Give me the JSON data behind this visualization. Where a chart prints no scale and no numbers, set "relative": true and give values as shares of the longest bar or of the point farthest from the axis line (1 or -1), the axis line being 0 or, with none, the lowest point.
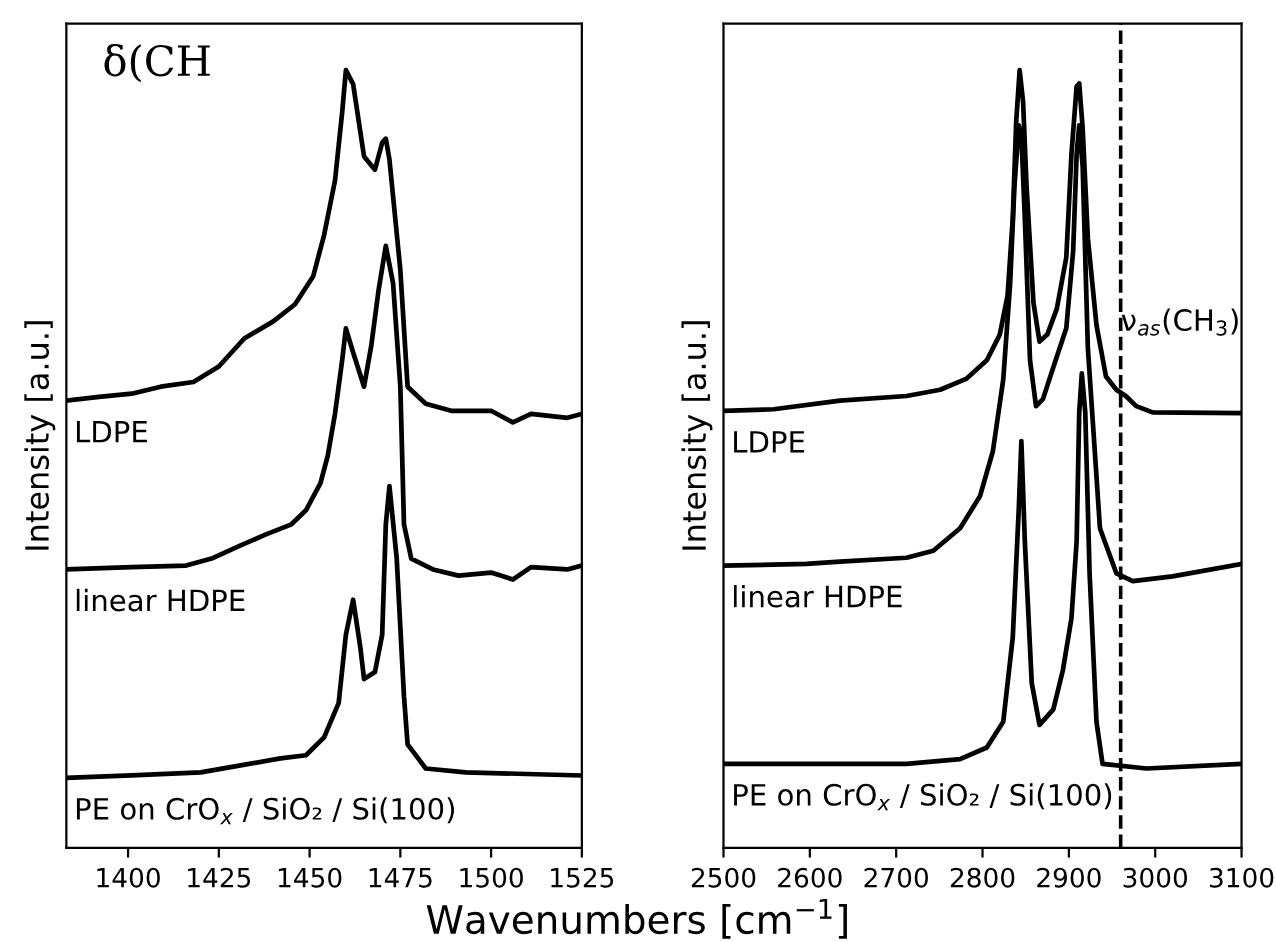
{
  "chart_data": [
    {
      "type": "line",
      "relative": true,
      "ylabel": "Intensity [a.u.]",
      "xlabel": "Wavenumbers [cm$^{−1}$]",
      "annotations": [
        "δ(CH"
      ],
      "xlim": [
        1383,
        1525
      ],
      "xticks": [
        1400,
        1425,
        1450,
        1475,
        1500,
        1525
      ],
      "tick_labels": "x",
      "grid": false,
      "legend": false,
      "marker": "none",
      "line_style": "solid",
      "series": [
        {
          "name": "LDPE",
          "color": "#000000",
          "x": [
            1383,
            1392,
            1401,
            1409,
            1418,
            1425,
            1432,
            1440,
            1446,
            1451,
            1454,
            1457,
            1459,
            1460,
            1462,
            1464,
            1465,
            1468,
            1470,
            1471,
            1472,
            1475,
            1477,
            1482,
            1489,
            1500,
            1506,
            1511,
            1521,
            1525
          ],
          "values": [
            0.575,
            0.58,
            0.584,
            0.593,
            0.599,
            0.619,
            0.655,
            0.677,
            0.699,
            0.735,
            0.788,
            0.858,
            0.947,
            1.0,
            0.982,
            0.92,
            0.889,
            0.872,
            0.907,
            0.912,
            0.885,
            0.743,
            0.593,
            0.571,
            0.562,
            0.562,
            0.547,
            0.558,
            0.553,
            0.558
          ]
        },
        {
          "name": "linear HDPE",
          "color": "#000000",
          "x": [
            1383,
            1401,
            1416,
            1423,
            1431,
            1438,
            1445,
            1449,
            1453,
            1455,
            1457,
            1459,
            1460,
            1462,
            1465,
            1467,
            1469,
            1471,
            1473,
            1475,
            1476,
            1478,
            1484,
            1491,
            1500,
            1506,
            1511,
            1521,
            1525
          ],
          "values": [
            0.358,
            0.361,
            0.363,
            0.372,
            0.389,
            0.403,
            0.416,
            0.434,
            0.469,
            0.504,
            0.558,
            0.628,
            0.668,
            0.637,
            0.593,
            0.646,
            0.717,
            0.774,
            0.726,
            0.593,
            0.416,
            0.372,
            0.358,
            0.35,
            0.354,
            0.345,
            0.361,
            0.358,
            0.363
          ]
        },
        {
          "name": "PE on CrO$_{x}$ / SiO₂ / Si(100)",
          "color": "#000000",
          "x": [
            1383,
            1401,
            1420,
            1431,
            1442,
            1449,
            1454,
            1458,
            1460,
            1462,
            1464,
            1465,
            1468,
            1470,
            1471,
            1472,
            1474,
            1476,
            1477,
            1482,
            1493,
            1525
          ],
          "values": [
            0.09,
            0.093,
            0.097,
            0.106,
            0.115,
            0.119,
            0.142,
            0.186,
            0.274,
            0.319,
            0.257,
            0.217,
            0.226,
            0.274,
            0.416,
            0.465,
            0.372,
            0.195,
            0.133,
            0.102,
            0.097,
            0.093
          ]
        }
      ]
    },
    {
      "type": "line",
      "relative": true,
      "ylabel": "Intensity [a.u.]",
      "xlim": [
        2500,
        3100
      ],
      "xticks": [
        2500,
        2600,
        2700,
        2800,
        2900,
        3000,
        3100
      ],
      "tick_labels": "x",
      "grid": false,
      "legend": false,
      "marker": "none",
      "line_style": "solid",
      "ref_lines": [
        {
          "axis": "x",
          "value": 2960,
          "label": "ν$_{as}$(CH$_{3}$)",
          "color": "#000000",
          "line_style": "dashed"
        }
      ],
      "series": [
        {
          "name": "LDPE",
          "color": "#000000",
          "x": [
            2500,
            2558,
            2635,
            2712,
            2751,
            2781,
            2805,
            2820,
            2829,
            2835,
            2839,
            2843,
            2847,
            2851,
            2859,
            2866,
            2875,
            2886,
            2897,
            2903,
            2909,
            2912,
            2916,
            2922,
            2932,
            2943,
            2955,
            2966,
            2978,
            2997,
            3100
          ],
          "values": [
            0.562,
            0.564,
            0.575,
            0.581,
            0.589,
            0.603,
            0.627,
            0.66,
            0.71,
            0.809,
            0.934,
            1.0,
            0.959,
            0.851,
            0.701,
            0.651,
            0.66,
            0.693,
            0.759,
            0.892,
            0.979,
            0.983,
            0.925,
            0.784,
            0.672,
            0.606,
            0.589,
            0.581,
            0.568,
            0.56,
            0.559
          ]
        },
        {
          "name": "linear HDPE",
          "color": "#000000",
          "x": [
            2500,
            2596,
            2635,
            2712,
            2743,
            2774,
            2797,
            2812,
            2824,
            2832,
            2837,
            2842,
            2845,
            2849,
            2855,
            2862,
            2870,
            2882,
            2897,
            2905,
            2909,
            2912,
            2916,
            2922,
            2936,
            2955,
            2974,
            3020,
            3100
          ],
          "values": [
            0.363,
            0.365,
            0.368,
            0.373,
            0.382,
            0.411,
            0.452,
            0.51,
            0.602,
            0.726,
            0.851,
            0.929,
            0.917,
            0.809,
            0.627,
            0.568,
            0.577,
            0.618,
            0.668,
            0.768,
            0.892,
            0.929,
            0.876,
            0.643,
            0.411,
            0.353,
            0.343,
            0.349,
            0.365
          ]
        },
        {
          "name": "PE on CrO$_{x}$ / SiO₂ / Si(100)",
          "color": "#000000",
          "x": [
            2500,
            2712,
            2774,
            2805,
            2824,
            2835,
            2842,
            2845,
            2849,
            2857,
            2866,
            2882,
            2893,
            2903,
            2909,
            2912,
            2915,
            2919,
            2924,
            2932,
            2939,
            2990,
            3100
          ],
          "values": [
            0.108,
            0.108,
            0.114,
            0.129,
            0.162,
            0.27,
            0.436,
            0.523,
            0.394,
            0.212,
            0.158,
            0.178,
            0.228,
            0.295,
            0.394,
            0.56,
            0.61,
            0.56,
            0.353,
            0.162,
            0.108,
            0.102,
            0.108
          ]
        }
      ]
    }
  ]
}
